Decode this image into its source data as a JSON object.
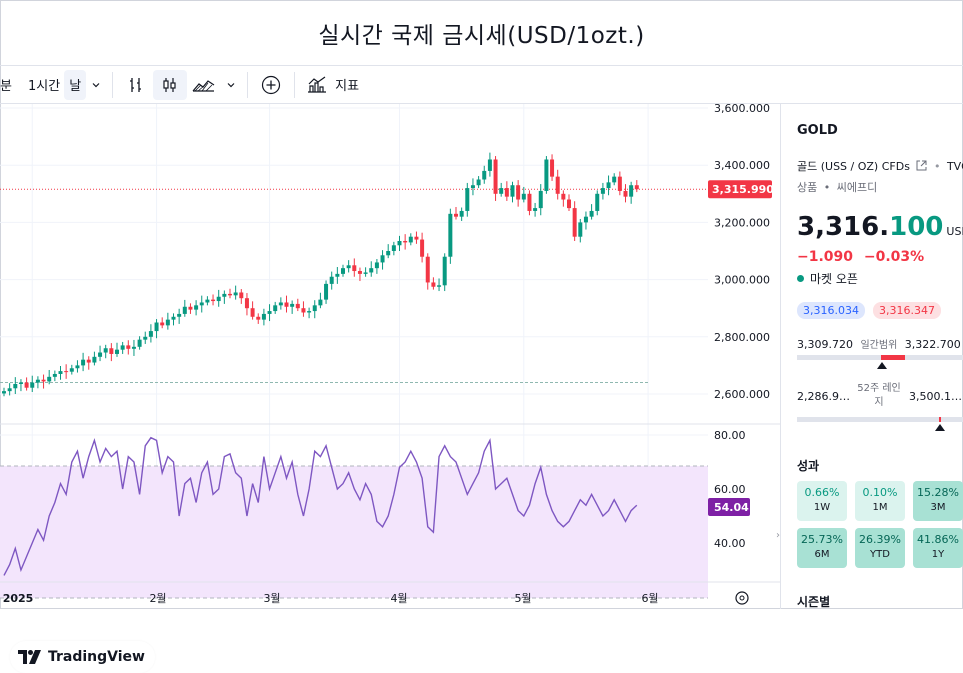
{
  "page": {
    "title": "실시간 국제 금시세(USD/1ozt.)"
  },
  "toolbar": {
    "interval_partial": "분",
    "interval_1h": "1시간",
    "interval_day": "날",
    "indicators_label": "지표"
  },
  "chart_data": [
    {
      "type": "candlestick",
      "title": "",
      "x_axis_ticks": [
        "2025",
        "2월",
        "3월",
        "4월",
        "5월",
        "6월"
      ],
      "y_axis_ticks": [
        "3,600.000",
        "3,400.000",
        "3,200.000",
        "3,000.000",
        "2,800.000",
        "2,600.000"
      ],
      "ylim": [
        2560,
        3600
      ],
      "last_price_label": "3,315.990",
      "last_price": 3315.99,
      "reference_line": 2640,
      "candle_width_days": 1,
      "candles_daily_close": [
        [
          0,
          2610
        ],
        [
          1,
          2620
        ],
        [
          2,
          2635
        ],
        [
          3,
          2640
        ],
        [
          4,
          2622
        ],
        [
          5,
          2640
        ],
        [
          6,
          2650
        ],
        [
          7,
          2644
        ],
        [
          8,
          2660
        ],
        [
          9,
          2670
        ],
        [
          10,
          2680
        ],
        [
          11,
          2678
        ],
        [
          12,
          2690
        ],
        [
          13,
          2700
        ],
        [
          14,
          2720
        ],
        [
          15,
          2710
        ],
        [
          16,
          2730
        ],
        [
          17,
          2745
        ],
        [
          18,
          2760
        ],
        [
          19,
          2740
        ],
        [
          20,
          2755
        ],
        [
          21,
          2770
        ],
        [
          22,
          2758
        ],
        [
          23,
          2765
        ],
        [
          24,
          2790
        ],
        [
          25,
          2800
        ],
        [
          26,
          2820
        ],
        [
          27,
          2850
        ],
        [
          28,
          2840
        ],
        [
          29,
          2860
        ],
        [
          30,
          2870
        ],
        [
          31,
          2880
        ],
        [
          32,
          2905
        ],
        [
          33,
          2895
        ],
        [
          34,
          2910
        ],
        [
          35,
          2920
        ],
        [
          36,
          2930
        ],
        [
          37,
          2925
        ],
        [
          38,
          2940
        ],
        [
          39,
          2950
        ],
        [
          40,
          2945
        ],
        [
          41,
          2955
        ],
        [
          42,
          2935
        ],
        [
          43,
          2900
        ],
        [
          44,
          2870
        ],
        [
          45,
          2860
        ],
        [
          46,
          2880
        ],
        [
          47,
          2890
        ],
        [
          48,
          2910
        ],
        [
          49,
          2920
        ],
        [
          50,
          2905
        ],
        [
          51,
          2915
        ],
        [
          52,
          2900
        ],
        [
          53,
          2885
        ],
        [
          54,
          2890
        ],
        [
          55,
          2910
        ],
        [
          56,
          2930
        ],
        [
          57,
          2985
        ],
        [
          58,
          3010
        ],
        [
          59,
          3020
        ],
        [
          60,
          3040
        ],
        [
          61,
          3050
        ],
        [
          62,
          3030
        ],
        [
          63,
          3020
        ],
        [
          64,
          3025
        ],
        [
          65,
          3040
        ],
        [
          66,
          3060
        ],
        [
          67,
          3085
        ],
        [
          68,
          3100
        ],
        [
          69,
          3120
        ],
        [
          70,
          3135
        ],
        [
          71,
          3130
        ],
        [
          72,
          3150
        ],
        [
          73,
          3140
        ],
        [
          74,
          3080
        ],
        [
          75,
          2990
        ],
        [
          76,
          2975
        ],
        [
          77,
          2980
        ],
        [
          78,
          3080
        ],
        [
          79,
          3230
        ],
        [
          80,
          3220
        ],
        [
          81,
          3240
        ],
        [
          82,
          3320
        ],
        [
          83,
          3330
        ],
        [
          84,
          3350
        ],
        [
          85,
          3380
        ],
        [
          86,
          3420
        ],
        [
          87,
          3300
        ],
        [
          88,
          3320
        ],
        [
          89,
          3290
        ],
        [
          90,
          3330
        ],
        [
          91,
          3280
        ],
        [
          92,
          3300
        ],
        [
          93,
          3240
        ],
        [
          94,
          3250
        ],
        [
          95,
          3310
        ],
        [
          96,
          3420
        ],
        [
          97,
          3360
        ],
        [
          98,
          3300
        ],
        [
          99,
          3280
        ],
        [
          100,
          3250
        ],
        [
          101,
          3150
        ],
        [
          102,
          3200
        ],
        [
          103,
          3220
        ],
        [
          104,
          3240
        ],
        [
          105,
          3300
        ],
        [
          106,
          3320
        ],
        [
          107,
          3340
        ],
        [
          108,
          3360
        ],
        [
          109,
          3310
        ],
        [
          110,
          3290
        ],
        [
          111,
          3330
        ],
        [
          112,
          3316
        ]
      ]
    },
    {
      "type": "line",
      "title": "",
      "series": [
        {
          "values": [
            28,
            32,
            38,
            30,
            35,
            40,
            45,
            41,
            50,
            55,
            62,
            58,
            70,
            74,
            64,
            72,
            78,
            70,
            75,
            72,
            74,
            60,
            72,
            70,
            58,
            76,
            79,
            78,
            66,
            72,
            70,
            50,
            62,
            64,
            55,
            66,
            70,
            58,
            60,
            72,
            73,
            66,
            64,
            50,
            62,
            55,
            72,
            60,
            66,
            72,
            64,
            70,
            58,
            50,
            60,
            74,
            72,
            76,
            68,
            60,
            62,
            66,
            60,
            56,
            62,
            58,
            48,
            46,
            50,
            58,
            68,
            70,
            74,
            70,
            64,
            46,
            44,
            72,
            76,
            72,
            70,
            64,
            58,
            62,
            66,
            74,
            78,
            60,
            62,
            64,
            58,
            52,
            50,
            54,
            62,
            68,
            58,
            52,
            48,
            46,
            48,
            52,
            56,
            54,
            58,
            54,
            50,
            52,
            56,
            52,
            48,
            52,
            54
          ]
        }
      ],
      "y_axis_ticks": [
        "80.00",
        "60.00",
        "40.00"
      ],
      "ylim": [
        30,
        85
      ],
      "band": [
        30,
        70
      ],
      "last_value_label": "54.04"
    }
  ],
  "watermark": "TradingView",
  "sidebar": {
    "symbol": "GOLD",
    "description": "골드 (USS / OZ) CFDs",
    "feed": "TVC",
    "category": "상품",
    "exchange": "씨에프디",
    "price_int": "3,316.",
    "price_frac": "100",
    "currency": "USD",
    "change": "−1.090",
    "change_pct": "−0.03%",
    "market_status": "마켓 오픈",
    "bid": "3,316.034",
    "ask": "3,316.347",
    "day_range": {
      "low": "3,309.720",
      "label": "일간범위",
      "high": "3,322.700"
    },
    "week52_range": {
      "low": "2,286.9…",
      "label": "52주 레인지",
      "high": "3,500.1…"
    },
    "performance_title": "성과",
    "performance": [
      {
        "value": "0.66%",
        "period": "1W"
      },
      {
        "value": "0.10%",
        "period": "1M"
      },
      {
        "value": "15.28%",
        "period": "3M"
      },
      {
        "value": "25.73%",
        "period": "6M"
      },
      {
        "value": "26.39%",
        "period": "YTD"
      },
      {
        "value": "41.86%",
        "period": "1Y"
      }
    ],
    "seasonals_title": "시즌별"
  }
}
